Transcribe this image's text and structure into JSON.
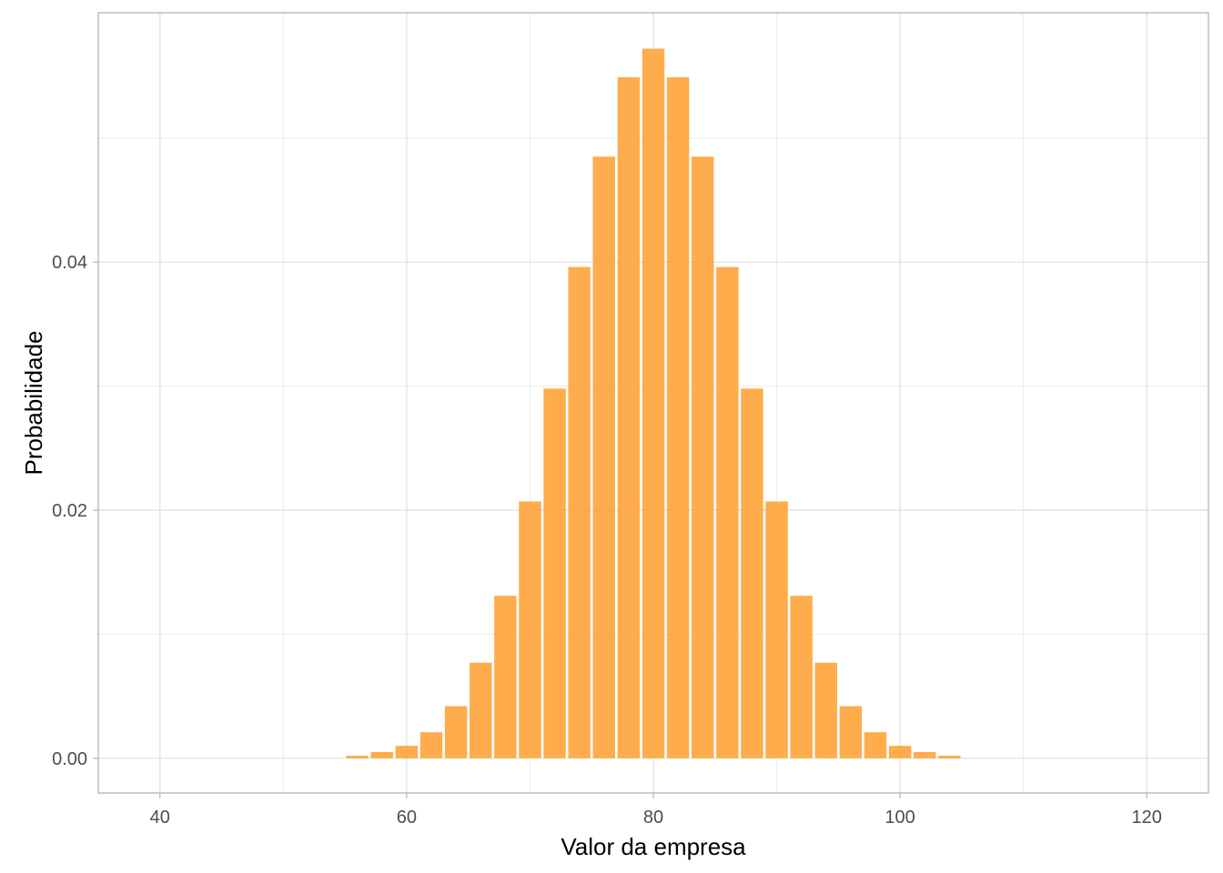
{
  "chart_data": {
    "type": "bar",
    "title": "",
    "xlabel": "Valor da empresa",
    "ylabel": "Probabilidade",
    "x": [
      56,
      58,
      60,
      62,
      64,
      66,
      68,
      70,
      72,
      74,
      76,
      78,
      80,
      82,
      84,
      86,
      88,
      90,
      92,
      94,
      96,
      98,
      100,
      102,
      104
    ],
    "values": [
      0.0002,
      0.0005,
      0.001,
      0.0021,
      0.0042,
      0.0077,
      0.0131,
      0.0207,
      0.0298,
      0.0396,
      0.0485,
      0.0549,
      0.0572,
      0.0549,
      0.0485,
      0.0396,
      0.0298,
      0.0207,
      0.0131,
      0.0077,
      0.0042,
      0.0021,
      0.001,
      0.0005,
      0.0002
    ],
    "xlim": [
      35,
      125
    ],
    "ylim": [
      -0.0028,
      0.0601
    ],
    "x_ticks": [
      40,
      60,
      80,
      100,
      120
    ],
    "x_tick_labels": [
      "40",
      "60",
      "80",
      "100",
      "120"
    ],
    "y_ticks": [
      0.0,
      0.02,
      0.04
    ],
    "y_tick_labels": [
      "0.00",
      "0.02",
      "0.04"
    ],
    "bar_color": "#ffa33a",
    "grid": true,
    "legend": "none"
  }
}
